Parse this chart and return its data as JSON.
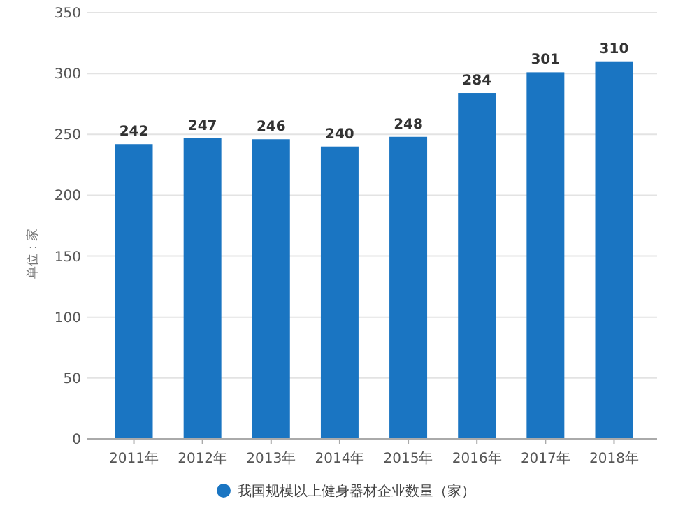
{
  "chart_data": {
    "type": "bar",
    "ylabel": "单位：家",
    "categories": [
      "2011年",
      "2012年",
      "2013年",
      "2014年",
      "2015年",
      "2016年",
      "2017年",
      "2018年"
    ],
    "series": [
      {
        "name": "我国规模以上健身器材企业数量（家）",
        "color": "#1a75c2",
        "values": [
          242,
          247,
          246,
          240,
          248,
          284,
          301,
          310
        ]
      }
    ],
    "ylim": [
      0,
      350
    ],
    "yticks": [
      0,
      50,
      100,
      150,
      200,
      250,
      300,
      350
    ],
    "grid": "y",
    "legend": "bottom",
    "data_labels": true
  }
}
